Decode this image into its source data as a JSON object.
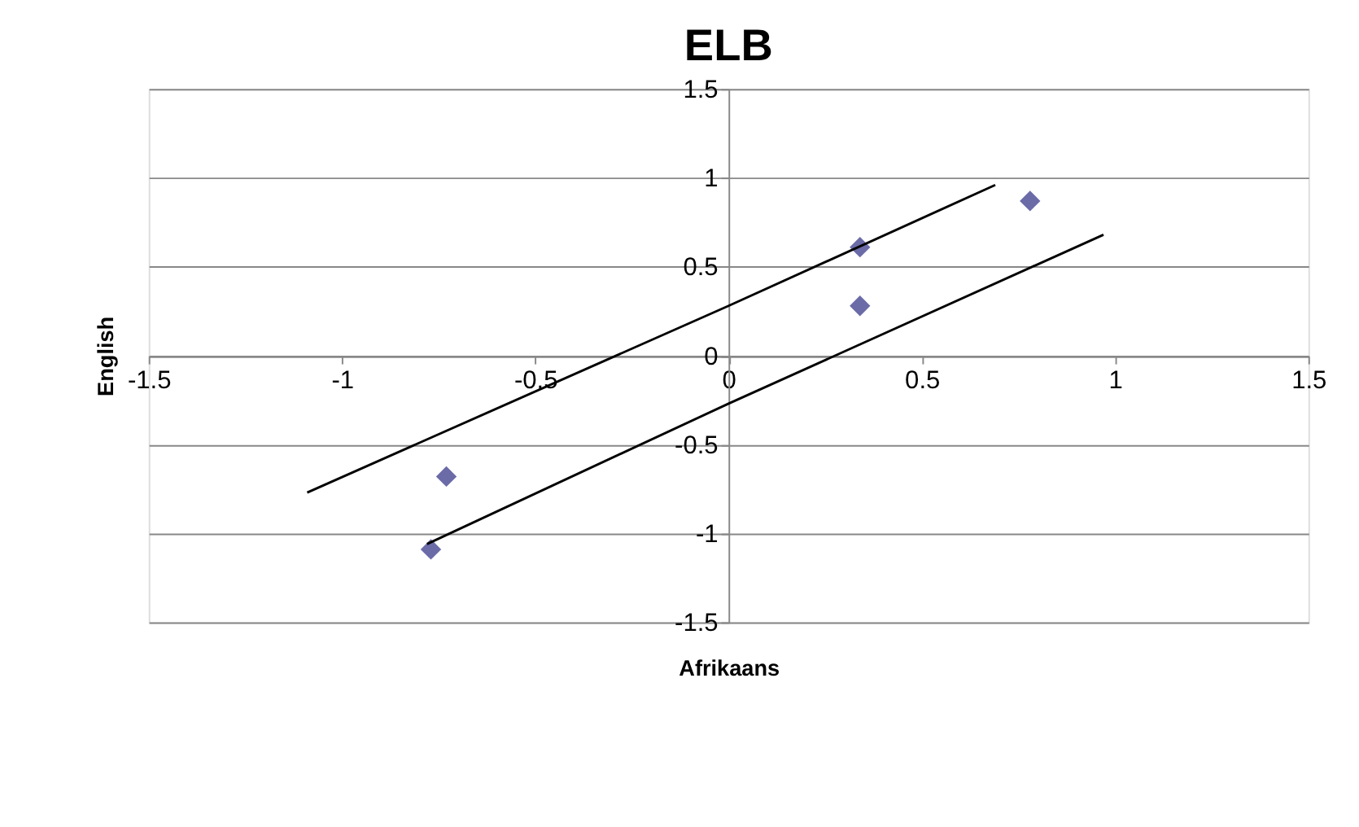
{
  "chart_data": {
    "type": "scatter",
    "title": "ELB",
    "xlabel": "Afrikaans",
    "ylabel": "English",
    "xlim": [
      -1.5,
      1.5
    ],
    "ylim": [
      -1.5,
      1.5
    ],
    "xticks": [
      -1.5,
      -1,
      -0.5,
      0,
      0.5,
      1,
      1.5
    ],
    "yticks": [
      -1.5,
      -1,
      -0.5,
      0,
      0.5,
      1,
      1.5
    ],
    "grid": "y",
    "legend": false,
    "series": [
      {
        "marker": "diamond",
        "color": "#6b6ba8",
        "x": [
          -0.77,
          -0.73,
          0.34,
          0.34,
          0.78
        ],
        "values": [
          -1.09,
          -0.68,
          0.61,
          0.28,
          0.87
        ]
      },
      {
        "type": "line",
        "color": "#000000",
        "line_style": "solid",
        "marker": "none",
        "x": [
          -1.09,
          0,
          0.69
        ],
        "values": [
          -0.77,
          0.28,
          0.96
        ]
      },
      {
        "type": "line",
        "color": "#000000",
        "line_style": "solid",
        "marker": "none",
        "x": [
          -0.78,
          0,
          0.97
        ],
        "values": [
          -1.06,
          -0.27,
          0.68
        ]
      }
    ]
  }
}
